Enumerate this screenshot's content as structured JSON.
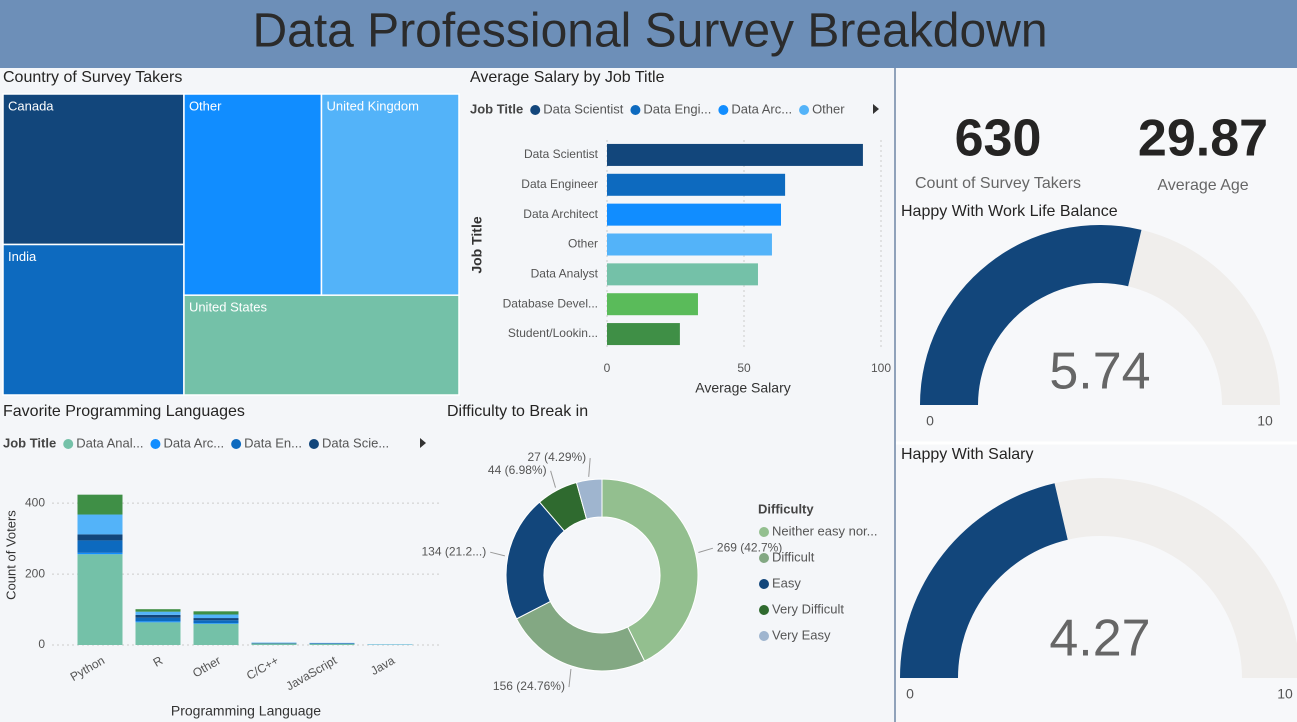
{
  "title": "Data Professional Survey Breakdown",
  "cards": [
    {
      "value": 630,
      "label": "Count of Survey Takers"
    },
    {
      "value": 29.87,
      "label": "Average Age"
    }
  ],
  "chart_data": [
    {
      "type": "treemap",
      "title": "Country of Survey Takers",
      "categories": [
        "Canada",
        "India",
        "Other",
        "United Kingdom",
        "United States"
      ],
      "values": [
        125,
        125,
        127,
        127,
        126
      ],
      "colors": [
        "#12467b",
        "#0d6abf",
        "#118dff",
        "#53b3f9",
        "#74c1a8"
      ]
    },
    {
      "type": "hbar",
      "title": "Average Salary by Job Title",
      "legend": {
        "title": "Job Title",
        "entries": [
          "Data Scientist",
          "Data Engi...",
          "Data Arc...",
          "Other"
        ],
        "colors": [
          "#12467b",
          "#0d6abf",
          "#118dff",
          "#53b3f9"
        ]
      },
      "categories": [
        "Data Scientist",
        "Data Engineer",
        "Data Architect",
        "Other",
        "Data Analyst",
        "Database Devel...",
        "Student/Lookin..."
      ],
      "values": [
        93.4,
        65,
        63.5,
        60.2,
        55.1,
        33.2,
        26.6
      ],
      "colors": [
        "#12467b",
        "#0d6abf",
        "#118dff",
        "#53b3f9",
        "#74c1a8",
        "#5abb5a",
        "#3f8f46"
      ],
      "xlabel": "Average Salary",
      "ylabel": "Job Title",
      "xlim": [
        0,
        100
      ],
      "xticks": [
        0,
        50,
        100
      ],
      "grid": true
    },
    {
      "type": "stacked-bar",
      "title": "Favorite Programming Languages",
      "legend": {
        "title": "Job Title"
      },
      "categories": [
        "Python",
        "R",
        "Other",
        "C/C++",
        "JavaScript",
        "Java"
      ],
      "series": [
        {
          "name": "Data Anal...",
          "color": "#74c1a8",
          "values": [
            256,
            64,
            60,
            4,
            3,
            1
          ]
        },
        {
          "name": "Data Arc...",
          "color": "#118dff",
          "values": [
            4,
            3,
            2,
            0,
            0,
            0
          ]
        },
        {
          "name": "Data En...",
          "color": "#0d6abf",
          "values": [
            35,
            10,
            8,
            1,
            1,
            0
          ]
        },
        {
          "name": "Data Scie...",
          "color": "#12467b",
          "values": [
            17,
            8,
            6,
            1,
            1,
            0
          ]
        },
        {
          "name": null,
          "color": "#53b3f9",
          "values": [
            56,
            9,
            10,
            1,
            1,
            1
          ]
        },
        {
          "name": null,
          "color": "#3f8f46",
          "values": [
            56,
            7,
            9,
            0,
            0,
            0
          ]
        }
      ],
      "xlabel": "Programming Language",
      "ylabel": "Count of Voters",
      "ylim": [
        0,
        440
      ],
      "yticks": [
        0,
        200,
        400
      ],
      "grid": true
    },
    {
      "type": "donut",
      "title": "Difficulty to Break in",
      "legend": {
        "title": "Difficulty"
      },
      "categories": [
        "Neither easy nor...",
        "Difficult",
        "Easy",
        "Very Difficult",
        "Very Easy"
      ],
      "values": [
        269,
        156,
        134,
        44,
        27
      ],
      "value_labels": [
        "269 (42.7%)",
        "156 (24.76%)",
        "134 (21.2...)",
        "44 (6.98%)",
        "27 (4.29%)"
      ],
      "colors": [
        "#93bf8f",
        "#83a883",
        "#12467b",
        "#2f6a2f",
        "#9fb5cf"
      ]
    },
    {
      "type": "gauge",
      "title": "Happy With Work Life Balance",
      "value": 5.74,
      "ylim": [
        0,
        10
      ],
      "yticks": [
        0,
        10
      ],
      "color": "#12467b"
    },
    {
      "type": "gauge",
      "title": "Happy With Salary",
      "value": 4.27,
      "ylim": [
        0,
        10
      ],
      "yticks": [
        0,
        10
      ],
      "color": "#12467b"
    }
  ]
}
